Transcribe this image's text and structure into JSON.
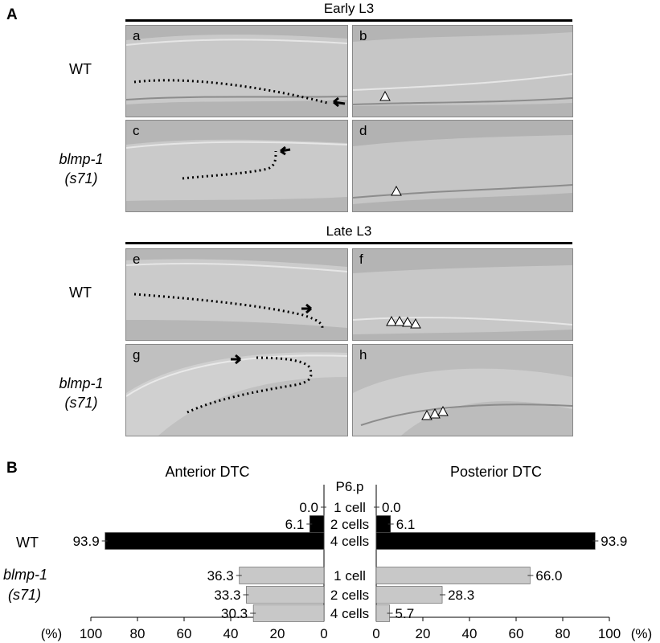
{
  "panel_a": {
    "label": "A",
    "stage_early": "Early L3",
    "stage_late": "Late L3",
    "row_wt_1": "WT",
    "row_mut_1_line1": "blmp-1",
    "row_mut_1_line2": "(s71)",
    "row_wt_2": "WT",
    "row_mut_2_line1": "blmp-1",
    "row_mut_2_line2": "(s71)",
    "subpanels": [
      "a",
      "b",
      "c",
      "d",
      "e",
      "f",
      "g",
      "h"
    ]
  },
  "panel_b": {
    "label": "B",
    "title_left": "Anterior DTC",
    "title_right": "Posterior DTC",
    "center_header": "P6.p",
    "unit": "(%)"
  },
  "chart_data": {
    "type": "bar",
    "orientation": "horizontal",
    "layout": "back-to-back",
    "categories": [
      "1 cell",
      "2 cells",
      "4 cells"
    ],
    "groups": [
      "WT",
      "blmp-1 (s71)"
    ],
    "x_ticks": [
      100,
      80,
      60,
      40,
      20,
      0
    ],
    "xlim": [
      0,
      100
    ],
    "anterior": {
      "WT": [
        {
          "cell": "1 cell",
          "value": 0.0,
          "label": "0.0"
        },
        {
          "cell": "2 cells",
          "value": 6.1,
          "label": "6.1"
        },
        {
          "cell": "4 cells",
          "value": 93.9,
          "label": "93.9"
        }
      ],
      "blmp-1 (s71)": [
        {
          "cell": "1 cell",
          "value": 36.3,
          "label": "36.3"
        },
        {
          "cell": "2 cells",
          "value": 33.3,
          "label": "33.3"
        },
        {
          "cell": "4 cells",
          "value": 30.3,
          "label": "30.3"
        }
      ]
    },
    "posterior": {
      "WT": [
        {
          "cell": "1 cell",
          "value": 0.0,
          "label": "0.0"
        },
        {
          "cell": "2 cells",
          "value": 6.1,
          "label": "6.1"
        },
        {
          "cell": "4 cells",
          "value": 93.9,
          "label": "93.9"
        }
      ],
      "blmp-1 (s71)": [
        {
          "cell": "1 cell",
          "value": 66.0,
          "label": "66.0"
        },
        {
          "cell": "2 cells",
          "value": 28.3,
          "label": "28.3"
        },
        {
          "cell": "4 cells",
          "value": 5.7,
          "label": "5.7"
        }
      ]
    },
    "colors": {
      "WT": "#000000",
      "blmp-1 (s71)": "#c8c8c8"
    }
  }
}
